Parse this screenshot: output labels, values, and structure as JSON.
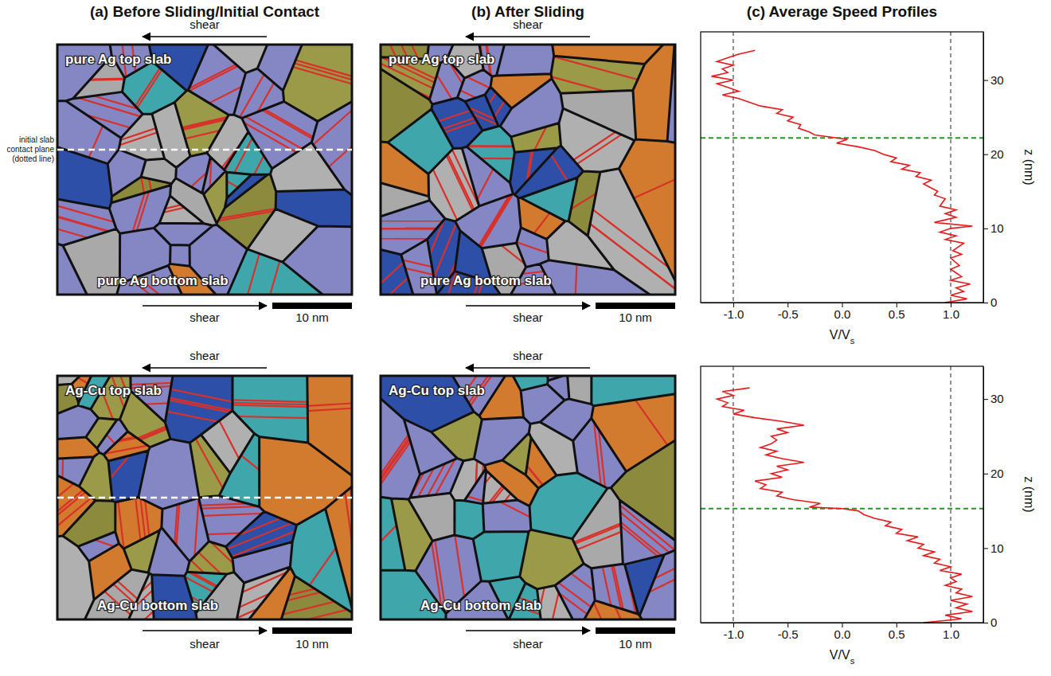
{
  "figure": {
    "panel_titles": [
      "(a) Before Sliding/Initial Contact",
      "(b) After Sliding",
      "(c) Average Speed Profiles"
    ],
    "shear_label": "shear",
    "scale_bar_label": "10 nm",
    "contact_plane_label": "initial slab contact plane (dotted line)",
    "rows": [
      {
        "before": {
          "top_slab": "pure Ag top slab",
          "bottom_slab": "pure Ag bottom slab"
        },
        "after": {
          "top_slab": "pure Ag top slab",
          "bottom_slab": "pure Ag bottom slab"
        }
      },
      {
        "before": {
          "top_slab": "Ag-Cu top slab",
          "bottom_slab": "Ag-Cu bottom slab"
        },
        "after": {
          "top_slab": "Ag-Cu top slab",
          "bottom_slab": "Ag-Cu bottom slab"
        }
      }
    ]
  },
  "chart_data": [
    {
      "type": "line",
      "xlabel": "V/Vs",
      "ylabel": "z (nm)",
      "xlim": [
        -1.3,
        1.3
      ],
      "ylim": [
        0,
        36.5
      ],
      "xticks": [
        {
          "value": -1,
          "label": "-1.0"
        },
        {
          "value": -0.5,
          "label": "-0.5"
        },
        {
          "value": 0,
          "label": "0.0"
        },
        {
          "value": 0.5,
          "label": "0.5"
        },
        {
          "value": 1,
          "label": "1.0"
        }
      ],
      "yticks": [
        0,
        10,
        20,
        30
      ],
      "reference_lines": {
        "x": [
          -1,
          1
        ],
        "y": [
          22.2
        ]
      },
      "series": [
        {
          "color": "#e41a1c",
          "x": [
            0.95,
            1.15,
            1.0,
            1.12,
            1.05,
            1.18,
            1.0,
            1.1,
            1.05,
            1.0,
            1.08,
            1.0,
            1.1,
            1.02,
            1.12,
            0.95,
            1.05,
            0.9,
            1.0,
            1.2,
            0.85,
            1.05,
            0.95,
            1.05,
            0.9,
            0.95,
            0.85,
            0.88,
            0.75,
            0.82,
            0.68,
            0.72,
            0.55,
            0.62,
            0.45,
            0.5,
            0.38,
            0.3,
            0.15,
            -0.05,
            0.05,
            -0.1,
            -0.25,
            -0.3,
            -0.4,
            -0.38,
            -0.5,
            -0.45,
            -0.6,
            -0.55,
            -0.75,
            -0.85,
            -0.95,
            -1.1,
            -0.95,
            -1.05,
            -1.15,
            -1.0,
            -1.2,
            -1.05,
            -1.1,
            -1.0,
            -1.15,
            -1.05,
            -0.95,
            -0.8
          ],
          "y": [
            0.0,
            0.5,
            1.0,
            1.5,
            2.0,
            2.5,
            3.0,
            3.5,
            4.0,
            4.5,
            5.0,
            6.0,
            6.5,
            7.0,
            8.0,
            8.5,
            9.0,
            9.5,
            10.0,
            10.3,
            10.8,
            11.5,
            12.0,
            12.5,
            13.0,
            14.0,
            14.5,
            15.0,
            16.0,
            16.5,
            17.0,
            17.5,
            18.0,
            18.5,
            19.0,
            19.5,
            20.0,
            20.5,
            21.0,
            21.5,
            22.0,
            22.3,
            22.6,
            23.0,
            23.5,
            24.0,
            24.5,
            25.0,
            25.5,
            26.0,
            26.5,
            27.0,
            27.5,
            28.0,
            28.5,
            29.0,
            29.5,
            30.0,
            30.5,
            31.0,
            31.5,
            32.0,
            32.5,
            33.0,
            33.5,
            34.0
          ]
        }
      ]
    },
    {
      "type": "line",
      "xlabel": "V/Vs",
      "ylabel": "z (nm)",
      "xlim": [
        -1.3,
        1.3
      ],
      "ylim": [
        0,
        34.4
      ],
      "xticks": [
        {
          "value": -1,
          "label": "-1.0"
        },
        {
          "value": -0.5,
          "label": "-0.5"
        },
        {
          "value": 0,
          "label": "0.0"
        },
        {
          "value": 0.5,
          "label": "0.5"
        },
        {
          "value": 1,
          "label": "1.0"
        }
      ],
      "yticks": [
        0,
        10,
        20,
        30
      ],
      "reference_lines": {
        "x": [
          -1,
          1
        ],
        "y": [
          15.3
        ]
      },
      "series": [
        {
          "color": "#e41a1c",
          "x": [
            0.75,
            1.1,
            0.95,
            1.2,
            1.05,
            1.15,
            1.0,
            1.2,
            1.05,
            1.1,
            0.95,
            1.05,
            1.0,
            1.1,
            0.9,
            1.0,
            0.85,
            0.9,
            0.75,
            0.85,
            0.7,
            0.75,
            0.6,
            0.7,
            0.5,
            0.55,
            0.4,
            0.45,
            0.3,
            0.2,
            0.15,
            0.0,
            -0.3,
            -0.2,
            -0.45,
            -0.6,
            -0.55,
            -0.75,
            -0.7,
            -0.8,
            -0.55,
            -0.65,
            -0.5,
            -0.6,
            -0.35,
            -0.55,
            -0.7,
            -0.6,
            -0.75,
            -0.65,
            -0.6,
            -0.65,
            -0.5,
            -0.6,
            -0.35,
            -0.55,
            -0.8,
            -1.0,
            -0.9,
            -1.1,
            -1.05,
            -1.15,
            -1.0,
            -1.1,
            -0.85
          ],
          "y": [
            0.0,
            0.5,
            1.0,
            1.5,
            2.0,
            2.5,
            3.0,
            3.5,
            4.0,
            4.5,
            5.0,
            5.5,
            6.0,
            6.5,
            7.0,
            7.5,
            8.0,
            8.5,
            9.0,
            9.5,
            10.0,
            10.5,
            11.0,
            11.5,
            12.0,
            12.5,
            13.0,
            13.5,
            14.0,
            14.5,
            15.0,
            15.3,
            15.5,
            16.0,
            16.5,
            17.0,
            17.5,
            18.0,
            18.5,
            19.0,
            19.5,
            20.0,
            20.5,
            21.0,
            21.5,
            22.0,
            22.5,
            23.0,
            23.5,
            24.0,
            24.5,
            25.0,
            25.5,
            26.0,
            26.5,
            27.0,
            27.5,
            28.0,
            28.5,
            29.0,
            29.5,
            30.0,
            30.5,
            31.0,
            31.5
          ]
        }
      ]
    }
  ]
}
